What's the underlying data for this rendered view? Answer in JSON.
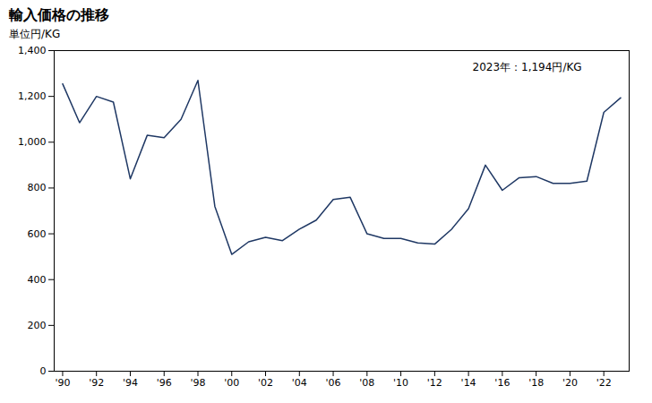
{
  "chart_data": {
    "type": "line",
    "title": "輸入価格の推移",
    "ylabel": "単位円/KG",
    "annotation": "2023年：1,194円/KG",
    "x": [
      1990,
      1991,
      1992,
      1993,
      1994,
      1995,
      1996,
      1997,
      1998,
      1999,
      2000,
      2001,
      2002,
      2003,
      2004,
      2005,
      2006,
      2007,
      2008,
      2009,
      2010,
      2011,
      2012,
      2013,
      2014,
      2015,
      2016,
      2017,
      2018,
      2019,
      2020,
      2021,
      2022,
      2023
    ],
    "values": [
      1255,
      1085,
      1200,
      1175,
      840,
      1030,
      1020,
      1100,
      1270,
      720,
      510,
      565,
      585,
      570,
      620,
      660,
      750,
      760,
      600,
      580,
      580,
      560,
      555,
      620,
      710,
      900,
      790,
      845,
      850,
      820,
      820,
      830,
      1130,
      1194
    ],
    "color": "#1f3864",
    "xlim": [
      1989.5,
      2023.5
    ],
    "xticks": [
      {
        "value": 1990,
        "label": "'90"
      },
      {
        "value": 1992,
        "label": "'92"
      },
      {
        "value": 1994,
        "label": "'94"
      },
      {
        "value": 1996,
        "label": "'96"
      },
      {
        "value": 1998,
        "label": "'98"
      },
      {
        "value": 2000,
        "label": "'00"
      },
      {
        "value": 2002,
        "label": "'02"
      },
      {
        "value": 2004,
        "label": "'04"
      },
      {
        "value": 2006,
        "label": "'06"
      },
      {
        "value": 2008,
        "label": "'08"
      },
      {
        "value": 2010,
        "label": "'10"
      },
      {
        "value": 2012,
        "label": "'12"
      },
      {
        "value": 2014,
        "label": "'14"
      },
      {
        "value": 2016,
        "label": "'16"
      },
      {
        "value": 2018,
        "label": "'18"
      },
      {
        "value": 2020,
        "label": "'20"
      },
      {
        "value": 2022,
        "label": "'22"
      }
    ],
    "ylim": [
      0,
      1400
    ],
    "yticks": [
      0,
      200,
      400,
      600,
      800,
      {
        "value": 1000,
        "label": "1,000"
      },
      {
        "value": 1200,
        "label": "1,200"
      },
      {
        "value": 1400,
        "label": "1,400"
      }
    ],
    "grid": false
  }
}
